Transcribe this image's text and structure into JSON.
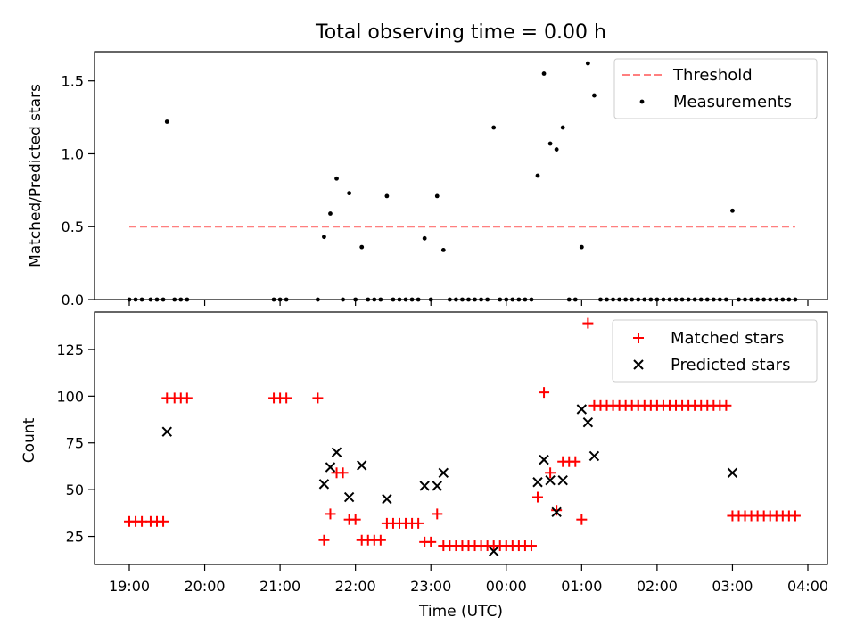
{
  "figure": {
    "title": "Total observing time = 0.00 h",
    "xlabel": "Time (UTC)",
    "x_ticks": [
      "19:00",
      "20:00",
      "21:00",
      "22:00",
      "23:00",
      "00:00",
      "01:00",
      "02:00",
      "03:00",
      "04:00"
    ]
  },
  "chart_data": [
    {
      "type": "scatter",
      "ylabel": "Matched/Predicted stars",
      "ylim": [
        0,
        1.7
      ],
      "y_ticks": [
        "0.0",
        "0.5",
        "1.0",
        "1.5"
      ],
      "legend_position": "top-right",
      "threshold": {
        "name": "Threshold",
        "value": 0.5,
        "x_range": [
          "19:00",
          "03:50"
        ],
        "color": "#ff7f7f"
      },
      "series": [
        {
          "name": "Measurements",
          "color": "#000000",
          "marker": "dot",
          "points": [
            [
              "19:00",
              0
            ],
            [
              "19:05",
              0
            ],
            [
              "19:10",
              0
            ],
            [
              "19:17",
              0
            ],
            [
              "19:22",
              0
            ],
            [
              "19:27",
              0
            ],
            [
              "19:30",
              1.22
            ],
            [
              "19:36",
              0
            ],
            [
              "19:41",
              0
            ],
            [
              "19:46",
              0
            ],
            [
              "20:55",
              0
            ],
            [
              "21:00",
              0
            ],
            [
              "21:05",
              0
            ],
            [
              "21:30",
              0
            ],
            [
              "21:35",
              0.43
            ],
            [
              "21:40",
              0.59
            ],
            [
              "21:45",
              0.83
            ],
            [
              "21:50",
              0
            ],
            [
              "21:55",
              0.73
            ],
            [
              "22:00",
              0
            ],
            [
              "22:05",
              0.36
            ],
            [
              "22:10",
              0
            ],
            [
              "22:15",
              0
            ],
            [
              "22:20",
              0
            ],
            [
              "22:25",
              0.71
            ],
            [
              "22:30",
              0
            ],
            [
              "22:35",
              0
            ],
            [
              "22:40",
              0
            ],
            [
              "22:45",
              0
            ],
            [
              "22:50",
              0
            ],
            [
              "22:55",
              0.42
            ],
            [
              "23:00",
              0
            ],
            [
              "23:05",
              0.71
            ],
            [
              "23:10",
              0.34
            ],
            [
              "23:15",
              0
            ],
            [
              "23:20",
              0
            ],
            [
              "23:25",
              0
            ],
            [
              "23:30",
              0
            ],
            [
              "23:35",
              0
            ],
            [
              "23:40",
              0
            ],
            [
              "23:45",
              0
            ],
            [
              "23:50",
              1.18
            ],
            [
              "23:55",
              0
            ],
            [
              "00:00",
              0
            ],
            [
              "00:05",
              0
            ],
            [
              "00:10",
              0
            ],
            [
              "00:15",
              0
            ],
            [
              "00:20",
              0
            ],
            [
              "00:25",
              0.85
            ],
            [
              "00:30",
              1.55
            ],
            [
              "00:35",
              1.07
            ],
            [
              "00:40",
              1.03
            ],
            [
              "00:45",
              1.18
            ],
            [
              "00:50",
              0
            ],
            [
              "00:55",
              0
            ],
            [
              "01:00",
              0.36
            ],
            [
              "01:05",
              1.62
            ],
            [
              "01:10",
              1.4
            ],
            [
              "01:15",
              0
            ],
            [
              "01:20",
              0
            ],
            [
              "01:25",
              0
            ],
            [
              "01:30",
              0
            ],
            [
              "01:35",
              0
            ],
            [
              "01:40",
              0
            ],
            [
              "01:45",
              0
            ],
            [
              "01:50",
              0
            ],
            [
              "01:55",
              0
            ],
            [
              "02:00",
              0
            ],
            [
              "02:05",
              0
            ],
            [
              "02:10",
              0
            ],
            [
              "02:15",
              0
            ],
            [
              "02:20",
              0
            ],
            [
              "02:25",
              0
            ],
            [
              "02:30",
              0
            ],
            [
              "02:35",
              0
            ],
            [
              "02:40",
              0
            ],
            [
              "02:45",
              0
            ],
            [
              "02:50",
              0
            ],
            [
              "02:55",
              0
            ],
            [
              "03:00",
              0.61
            ],
            [
              "03:05",
              0
            ],
            [
              "03:10",
              0
            ],
            [
              "03:15",
              0
            ],
            [
              "03:20",
              0
            ],
            [
              "03:25",
              0
            ],
            [
              "03:30",
              0
            ],
            [
              "03:35",
              0
            ],
            [
              "03:40",
              0
            ],
            [
              "03:45",
              0
            ],
            [
              "03:50",
              0
            ]
          ]
        }
      ]
    },
    {
      "type": "scatter",
      "ylabel": "Count",
      "ylim": [
        10,
        145
      ],
      "y_ticks": [
        "25",
        "50",
        "75",
        "100",
        "125"
      ],
      "legend_position": "top-right",
      "series": [
        {
          "name": "Matched stars",
          "color": "#ff0000",
          "marker": "plus",
          "points": [
            [
              "19:00",
              33
            ],
            [
              "19:05",
              33
            ],
            [
              "19:10",
              33
            ],
            [
              "19:17",
              33
            ],
            [
              "19:22",
              33
            ],
            [
              "19:27",
              33
            ],
            [
              "19:30",
              99
            ],
            [
              "19:36",
              99
            ],
            [
              "19:41",
              99
            ],
            [
              "19:46",
              99
            ],
            [
              "20:55",
              99
            ],
            [
              "21:00",
              99
            ],
            [
              "21:05",
              99
            ],
            [
              "21:30",
              99
            ],
            [
              "21:35",
              23
            ],
            [
              "21:40",
              37
            ],
            [
              "21:45",
              59
            ],
            [
              "21:50",
              59
            ],
            [
              "21:55",
              34
            ],
            [
              "22:00",
              34
            ],
            [
              "22:05",
              23
            ],
            [
              "22:10",
              23
            ],
            [
              "22:15",
              23
            ],
            [
              "22:20",
              23
            ],
            [
              "22:25",
              32
            ],
            [
              "22:30",
              32
            ],
            [
              "22:35",
              32
            ],
            [
              "22:40",
              32
            ],
            [
              "22:45",
              32
            ],
            [
              "22:50",
              32
            ],
            [
              "22:55",
              22
            ],
            [
              "23:00",
              22
            ],
            [
              "23:05",
              37
            ],
            [
              "23:10",
              20
            ],
            [
              "23:15",
              20
            ],
            [
              "23:20",
              20
            ],
            [
              "23:25",
              20
            ],
            [
              "23:30",
              20
            ],
            [
              "23:35",
              20
            ],
            [
              "23:40",
              20
            ],
            [
              "23:45",
              20
            ],
            [
              "23:50",
              20
            ],
            [
              "23:55",
              20
            ],
            [
              "00:00",
              20
            ],
            [
              "00:05",
              20
            ],
            [
              "00:10",
              20
            ],
            [
              "00:15",
              20
            ],
            [
              "00:20",
              20
            ],
            [
              "00:25",
              46
            ],
            [
              "00:30",
              102
            ],
            [
              "00:35",
              59
            ],
            [
              "00:40",
              39
            ],
            [
              "00:45",
              65
            ],
            [
              "00:50",
              65
            ],
            [
              "00:55",
              65
            ],
            [
              "01:00",
              34
            ],
            [
              "01:05",
              139
            ],
            [
              "01:10",
              95
            ],
            [
              "01:15",
              95
            ],
            [
              "01:20",
              95
            ],
            [
              "01:25",
              95
            ],
            [
              "01:30",
              95
            ],
            [
              "01:35",
              95
            ],
            [
              "01:40",
              95
            ],
            [
              "01:45",
              95
            ],
            [
              "01:50",
              95
            ],
            [
              "01:55",
              95
            ],
            [
              "02:00",
              95
            ],
            [
              "02:05",
              95
            ],
            [
              "02:10",
              95
            ],
            [
              "02:15",
              95
            ],
            [
              "02:20",
              95
            ],
            [
              "02:25",
              95
            ],
            [
              "02:30",
              95
            ],
            [
              "02:35",
              95
            ],
            [
              "02:40",
              95
            ],
            [
              "02:45",
              95
            ],
            [
              "02:50",
              95
            ],
            [
              "02:55",
              95
            ],
            [
              "03:00",
              36
            ],
            [
              "03:05",
              36
            ],
            [
              "03:10",
              36
            ],
            [
              "03:15",
              36
            ],
            [
              "03:20",
              36
            ],
            [
              "03:25",
              36
            ],
            [
              "03:30",
              36
            ],
            [
              "03:35",
              36
            ],
            [
              "03:40",
              36
            ],
            [
              "03:45",
              36
            ],
            [
              "03:50",
              36
            ]
          ]
        },
        {
          "name": "Predicted stars",
          "color": "#000000",
          "marker": "x",
          "points": [
            [
              "19:30",
              81
            ],
            [
              "21:35",
              53
            ],
            [
              "21:40",
              62
            ],
            [
              "21:45",
              70
            ],
            [
              "21:55",
              46
            ],
            [
              "22:05",
              63
            ],
            [
              "22:25",
              45
            ],
            [
              "22:55",
              52
            ],
            [
              "23:05",
              52
            ],
            [
              "23:10",
              59
            ],
            [
              "23:50",
              17
            ],
            [
              "00:25",
              54
            ],
            [
              "00:30",
              66
            ],
            [
              "00:35",
              55
            ],
            [
              "00:40",
              38
            ],
            [
              "00:45",
              55
            ],
            [
              "01:00",
              93
            ],
            [
              "01:05",
              86
            ],
            [
              "01:10",
              68
            ],
            [
              "03:00",
              59
            ]
          ]
        }
      ]
    }
  ]
}
